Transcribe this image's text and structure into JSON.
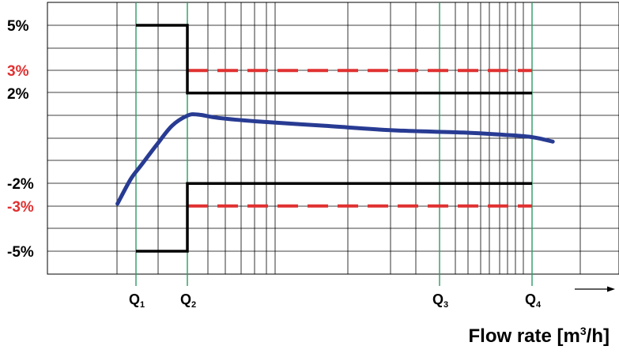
{
  "chart_data": {
    "type": "line",
    "title": "",
    "xlabel": {
      "prefix": "Flow rate [m",
      "sup": "3",
      "suffix": "/h]"
    },
    "ylabel": "",
    "x_scale": "log",
    "y_ticks": [
      {
        "label": "5%",
        "value": 5,
        "color": "#000000"
      },
      {
        "label": "3%",
        "value": 3,
        "color": "#e03030"
      },
      {
        "label": "2%",
        "value": 2,
        "color": "#000000"
      },
      {
        "label": "-2%",
        "value": -2,
        "color": "#000000"
      },
      {
        "label": "-3%",
        "value": -3,
        "color": "#e03030"
      },
      {
        "label": "-5%",
        "value": -5,
        "color": "#000000"
      }
    ],
    "flow_points": [
      {
        "name": "Q",
        "sub": "1"
      },
      {
        "name": "Q",
        "sub": "2"
      },
      {
        "name": "Q",
        "sub": "3"
      },
      {
        "name": "Q",
        "sub": "4"
      }
    ],
    "limits": {
      "black_upper": [
        [
          -0.5,
          5
        ],
        [
          0,
          5
        ],
        [
          0,
          2
        ],
        [
          5,
          2
        ]
      ],
      "black_lower": [
        [
          -0.5,
          -5
        ],
        [
          0,
          -5
        ],
        [
          0,
          -2
        ],
        [
          5,
          -2
        ]
      ],
      "red_upper": [
        [
          0,
          3
        ],
        [
          5,
          3
        ]
      ],
      "red_lower": [
        [
          0,
          -3
        ],
        [
          5,
          -3
        ]
      ]
    },
    "error_curve": [
      [
        -0.68,
        -2.9
      ],
      [
        -0.55,
        -1.8
      ],
      [
        -0.45,
        -1.2
      ],
      [
        -0.3,
        -0.3
      ],
      [
        -0.15,
        0.55
      ],
      [
        0,
        1.0
      ],
      [
        0.15,
        1.05
      ],
      [
        0.45,
        0.9
      ],
      [
        1.0,
        0.75
      ],
      [
        2.0,
        0.55
      ],
      [
        3.0,
        0.35
      ],
      [
        4.0,
        0.25
      ],
      [
        4.6,
        0.15
      ],
      [
        5.0,
        0.05
      ],
      [
        5.3,
        -0.15
      ]
    ],
    "colors": {
      "curve": "#283b93",
      "limit_black": "#000000",
      "limit_red": "#e03030",
      "q_lines": "#2e9a63",
      "grid": "#000000"
    },
    "grid": true
  }
}
